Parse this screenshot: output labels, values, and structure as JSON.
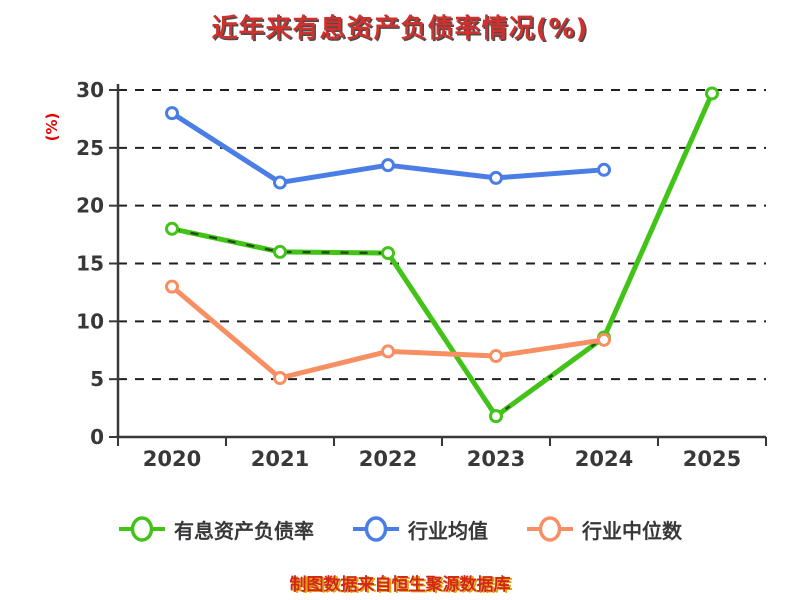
{
  "title": "近年来有息资产负债率情况(%)",
  "footer_note": "制图数据来自恒生聚源数据库",
  "colors": {
    "title": "#d0312d",
    "axis": "#39393b",
    "grid": "#202020",
    "tick_label": "#38383a",
    "y_axis_name": "#e60000",
    "footer_red": "#d3261b",
    "footer_yellow": "#dfa300",
    "marker_fill": "#ffffff",
    "green": "#41c317",
    "blue": "#4a7de5",
    "orange": "#f88f63",
    "green_dash_overlay": "#1b3a0e"
  },
  "chart_data": {
    "type": "line",
    "title": "近年来有息资产负债率情况(%)",
    "categories": [
      "2020",
      "2021",
      "2022",
      "2023",
      "2024",
      "2025"
    ],
    "series": [
      {
        "name": "有息资产负债率",
        "color": "#41c317",
        "style": "dashed-overlay",
        "values": [
          18.0,
          16.0,
          15.9,
          1.8,
          8.6,
          29.7
        ]
      },
      {
        "name": "行业均值",
        "color": "#4a7de5",
        "style": "solid",
        "values": [
          28.0,
          22.0,
          23.5,
          22.4,
          23.1,
          null
        ]
      },
      {
        "name": "行业中位数",
        "color": "#f88f63",
        "style": "solid",
        "values": [
          13.0,
          5.1,
          7.4,
          7.0,
          8.4,
          null
        ]
      }
    ],
    "xlabel": "",
    "ylabel": "(%)",
    "ylim": [
      0,
      30
    ],
    "yticks": [
      0,
      5,
      10,
      15,
      20,
      25,
      30
    ],
    "grid": true,
    "grid_style": "dashed",
    "legend_position": "bottom",
    "marker": "circle-white-fill"
  }
}
